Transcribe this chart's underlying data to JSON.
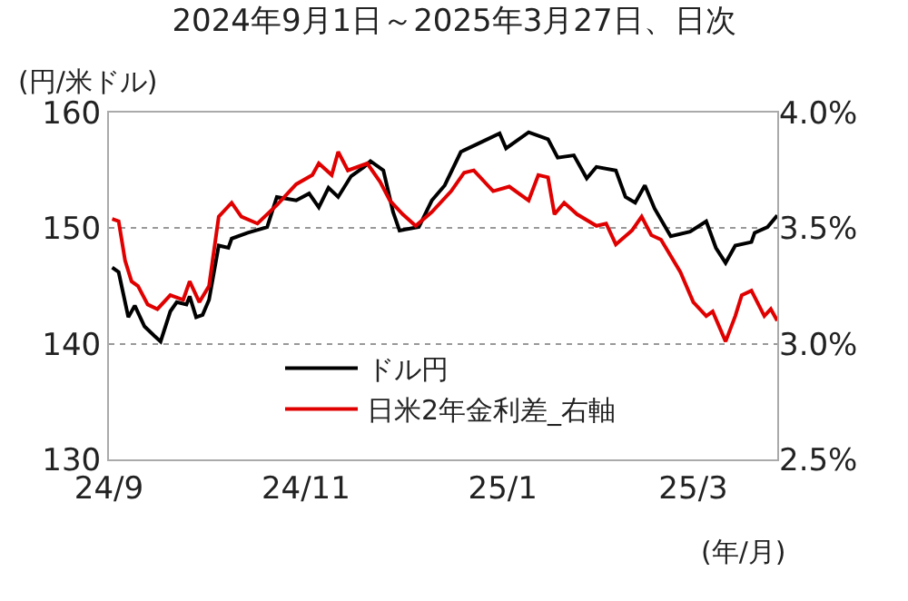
{
  "chart_data": {
    "type": "line",
    "title": "2024年9月1日～2025年3月27日、日次",
    "ylabel": "(円/米ドル)",
    "annotations": [
      "(年/月)"
    ],
    "xlim": [
      "2024-09-01",
      "2025-03-27"
    ],
    "xticks": [
      {
        "value": "2024-09-01",
        "label": "24/9"
      },
      {
        "value": "2024-11-01",
        "label": "24/11"
      },
      {
        "value": "2025-01-01",
        "label": "25/1"
      },
      {
        "value": "2025-03-01",
        "label": "25/3"
      }
    ],
    "ylim": [
      130,
      160
    ],
    "yticks": [
      130,
      140,
      150,
      160
    ],
    "y2lim": [
      2.5,
      4.0
    ],
    "y2ticks": [
      {
        "value": 2.5,
        "label": "2.5%"
      },
      {
        "value": 3.0,
        "label": "3.0%"
      },
      {
        "value": 3.5,
        "label": "3.5%"
      },
      {
        "value": 4.0,
        "label": "4.0%"
      }
    ],
    "grid": "y",
    "legend": "bottom",
    "marker": "none",
    "line_style": "solid",
    "series": [
      {
        "name": "ドル円",
        "color": "#000000",
        "x": [
          "2024-09-02",
          "2024-09-04",
          "2024-09-07",
          "2024-09-09",
          "2024-09-12",
          "2024-09-15",
          "2024-09-17",
          "2024-09-20",
          "2024-09-22",
          "2024-09-25",
          "2024-09-26",
          "2024-09-28",
          "2024-09-30",
          "2024-10-02",
          "2024-10-05",
          "2024-10-08",
          "2024-10-09",
          "2024-10-14",
          "2024-10-20",
          "2024-10-23",
          "2024-10-29",
          "2024-11-02",
          "2024-11-05",
          "2024-11-08",
          "2024-11-11",
          "2024-11-15",
          "2024-11-19",
          "2024-11-21",
          "2024-11-25",
          "2024-11-28",
          "2024-11-30",
          "2024-12-06",
          "2024-12-10",
          "2024-12-14",
          "2024-12-19",
          "2024-12-25",
          "2024-12-31",
          "2025-01-02",
          "2025-01-09",
          "2025-01-15",
          "2025-01-18",
          "2025-01-23",
          "2025-01-27",
          "2025-01-30",
          "2025-02-05",
          "2025-02-08",
          "2025-02-11",
          "2025-02-14",
          "2025-02-17",
          "2025-02-22",
          "2025-02-28",
          "2025-03-05",
          "2025-03-08",
          "2025-03-11",
          "2025-03-14",
          "2025-03-19",
          "2025-03-20",
          "2025-03-24",
          "2025-03-27"
        ],
        "values": [
          146.6,
          146.2,
          142.3,
          143.3,
          141.5,
          140.7,
          140.2,
          142.8,
          143.6,
          143.4,
          144.1,
          142.3,
          142.5,
          143.8,
          148.5,
          148.3,
          149.1,
          149.6,
          150.1,
          152.7,
          152.4,
          153.0,
          151.8,
          153.5,
          152.7,
          154.5,
          155.3,
          155.8,
          155.0,
          151.4,
          149.8,
          150.1,
          152.4,
          153.7,
          156.6,
          157.4,
          158.2,
          156.9,
          158.3,
          157.7,
          156.1,
          156.3,
          154.3,
          155.3,
          155.0,
          152.7,
          152.2,
          153.7,
          151.7,
          149.3,
          149.7,
          150.6,
          148.3,
          147.0,
          148.5,
          148.8,
          149.6,
          150.1,
          151.1
        ]
      },
      {
        "name": "日米2年金利差_右軸",
        "color": "#e00000",
        "axis": "y2",
        "x": [
          "2024-09-02",
          "2024-09-04",
          "2024-09-06",
          "2024-09-08",
          "2024-09-10",
          "2024-09-13",
          "2024-09-16",
          "2024-09-20",
          "2024-09-24",
          "2024-09-26",
          "2024-09-29",
          "2024-10-02",
          "2024-10-05",
          "2024-10-09",
          "2024-10-12",
          "2024-10-17",
          "2024-10-23",
          "2024-10-29",
          "2024-11-03",
          "2024-11-05",
          "2024-11-09",
          "2024-11-11",
          "2024-11-14",
          "2024-11-20",
          "2024-11-24",
          "2024-11-27",
          "2024-12-01",
          "2024-12-05",
          "2024-12-10",
          "2024-12-16",
          "2024-12-20",
          "2024-12-23",
          "2024-12-29",
          "2025-01-03",
          "2025-01-09",
          "2025-01-12",
          "2025-01-15",
          "2025-01-17",
          "2025-01-20",
          "2025-01-24",
          "2025-01-30",
          "2025-02-02",
          "2025-02-05",
          "2025-02-10",
          "2025-02-13",
          "2025-02-16",
          "2025-02-19",
          "2025-02-25",
          "2025-03-01",
          "2025-03-05",
          "2025-03-07",
          "2025-03-11",
          "2025-03-14",
          "2025-03-16",
          "2025-03-19",
          "2025-03-23",
          "2025-03-25",
          "2025-03-27"
        ],
        "values": [
          3.54,
          3.53,
          3.36,
          3.27,
          3.25,
          3.17,
          3.15,
          3.21,
          3.19,
          3.27,
          3.18,
          3.25,
          3.55,
          3.61,
          3.55,
          3.52,
          3.6,
          3.69,
          3.73,
          3.78,
          3.73,
          3.83,
          3.75,
          3.78,
          3.7,
          3.62,
          3.56,
          3.51,
          3.57,
          3.66,
          3.74,
          3.75,
          3.66,
          3.68,
          3.62,
          3.73,
          3.72,
          3.56,
          3.61,
          3.56,
          3.51,
          3.52,
          3.43,
          3.49,
          3.55,
          3.47,
          3.45,
          3.31,
          3.18,
          3.12,
          3.14,
          3.01,
          3.12,
          3.21,
          3.23,
          3.12,
          3.15,
          3.1
        ]
      }
    ]
  }
}
